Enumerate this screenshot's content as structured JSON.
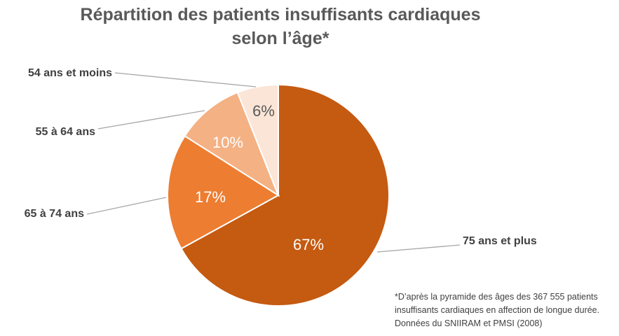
{
  "chart_data": {
    "type": "pie",
    "title": "Répartition des patients insuffisants  cardiaques",
    "subtitle": "selon l’âge*",
    "categories": [
      "75 ans et plus",
      "65 à 74 ans",
      "55 à 64 ans",
      "54 ans et moins"
    ],
    "values": [
      67,
      17,
      10,
      6
    ],
    "data_labels": [
      "67%",
      "17%",
      "10%",
      "6%"
    ],
    "colors": [
      "#C55A11",
      "#ED7D31",
      "#F4B183",
      "#FBE5D6"
    ],
    "start": "top, clockwise",
    "legend": "none (leader-line labels)"
  },
  "footnote": [
    "*D’après la pyramide des âges des 367 555 patients",
    "insuffisants cardiaques en affection de longue durée.",
    "Données du  SNIIRAM et PMSI (2008)"
  ]
}
